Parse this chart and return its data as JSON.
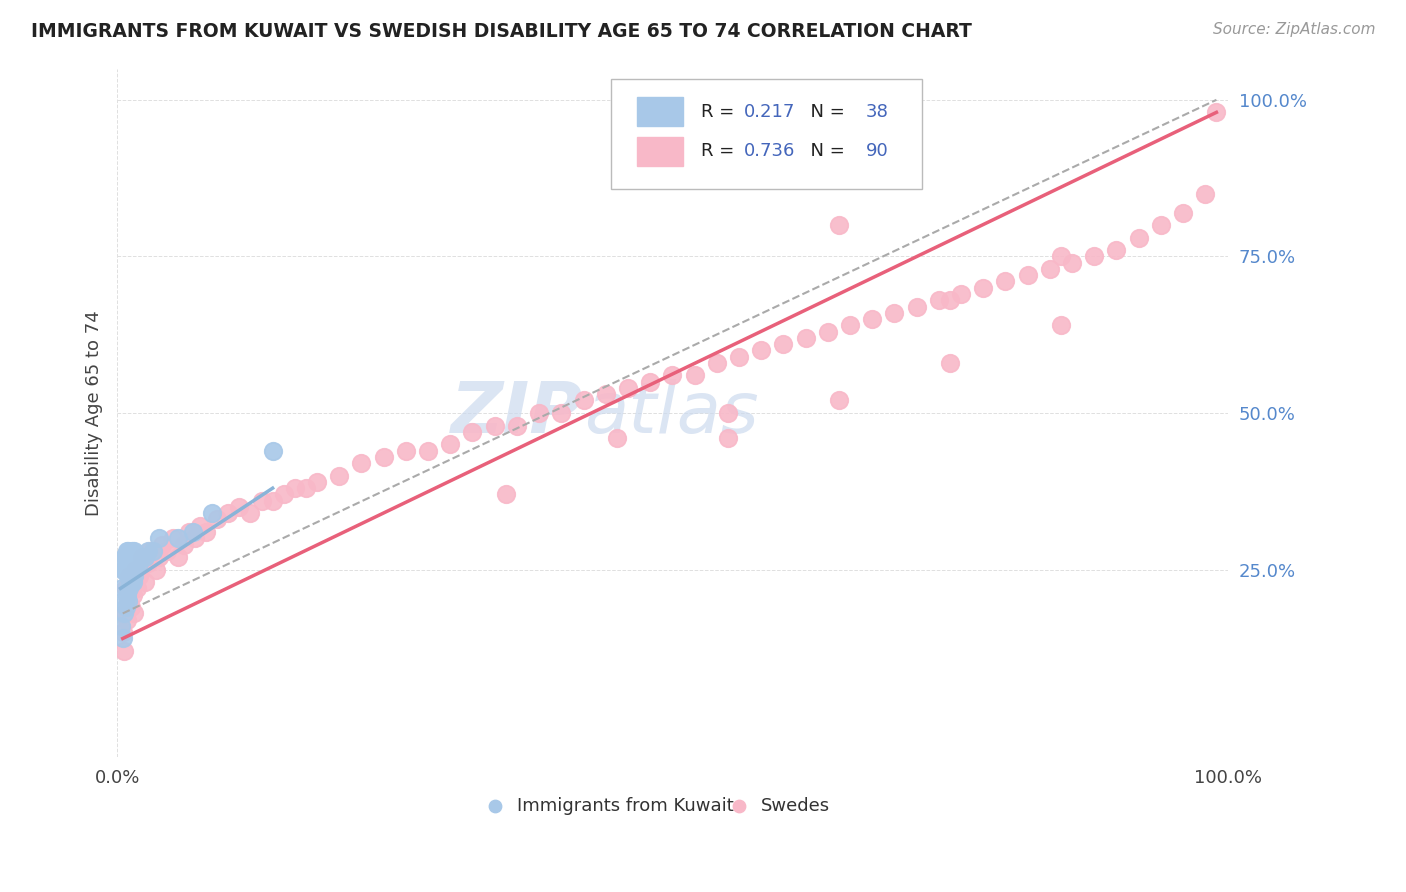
{
  "title": "IMMIGRANTS FROM KUWAIT VS SWEDISH DISABILITY AGE 65 TO 74 CORRELATION CHART",
  "source_text": "Source: ZipAtlas.com",
  "ylabel": "Disability Age 65 to 74",
  "xlim": [
    0.0,
    1.0
  ],
  "ylim": [
    -0.05,
    1.05
  ],
  "legend_label_1": "Immigrants from Kuwait",
  "legend_label_2": "Swedes",
  "r1": "0.217",
  "n1": "38",
  "r2": "0.736",
  "n2": "90",
  "kuwait_color": "#a8c8e8",
  "kuwait_edge_color": "#7aaad0",
  "sweden_color": "#f8b8c8",
  "sweden_edge_color": "#e88898",
  "kuwait_line_color": "#8ab4d8",
  "sweden_line_color": "#e8607a",
  "background_color": "#ffffff",
  "grid_color": "#e0e0e0",
  "watermark_color": "#ccdaee",
  "title_color": "#222222",
  "source_color": "#999999",
  "ytick_color": "#5588cc",
  "xtick_color": "#444444",
  "ylabel_color": "#444444",
  "legend_r_color": "#222222",
  "legend_n_color": "#4466bb",
  "kuwait_x": [
    0.003,
    0.004,
    0.005,
    0.005,
    0.006,
    0.006,
    0.007,
    0.007,
    0.008,
    0.008,
    0.009,
    0.009,
    0.01,
    0.01,
    0.01,
    0.011,
    0.011,
    0.012,
    0.012,
    0.013,
    0.013,
    0.014,
    0.014,
    0.015,
    0.015,
    0.016,
    0.017,
    0.018,
    0.02,
    0.022,
    0.025,
    0.028,
    0.032,
    0.038,
    0.055,
    0.068,
    0.085,
    0.14
  ],
  "kuwait_y": [
    0.16,
    0.22,
    0.14,
    0.25,
    0.18,
    0.27,
    0.2,
    0.25,
    0.19,
    0.27,
    0.21,
    0.28,
    0.2,
    0.24,
    0.28,
    0.22,
    0.26,
    0.23,
    0.27,
    0.24,
    0.28,
    0.23,
    0.27,
    0.24,
    0.28,
    0.25,
    0.26,
    0.27,
    0.26,
    0.27,
    0.27,
    0.28,
    0.28,
    0.3,
    0.3,
    0.31,
    0.34,
    0.44
  ],
  "kuwait_line_x": [
    0.003,
    0.14
  ],
  "kuwait_line_y": [
    0.22,
    0.38
  ],
  "sweden_x": [
    0.005,
    0.006,
    0.007,
    0.008,
    0.009,
    0.01,
    0.011,
    0.012,
    0.013,
    0.014,
    0.015,
    0.016,
    0.018,
    0.02,
    0.022,
    0.025,
    0.028,
    0.03,
    0.035,
    0.038,
    0.04,
    0.045,
    0.05,
    0.055,
    0.06,
    0.065,
    0.07,
    0.075,
    0.08,
    0.09,
    0.1,
    0.11,
    0.12,
    0.13,
    0.14,
    0.15,
    0.16,
    0.17,
    0.18,
    0.2,
    0.22,
    0.24,
    0.26,
    0.28,
    0.3,
    0.32,
    0.34,
    0.36,
    0.38,
    0.4,
    0.42,
    0.44,
    0.46,
    0.48,
    0.5,
    0.52,
    0.54,
    0.56,
    0.58,
    0.6,
    0.62,
    0.64,
    0.66,
    0.68,
    0.7,
    0.72,
    0.74,
    0.76,
    0.78,
    0.8,
    0.82,
    0.84,
    0.86,
    0.88,
    0.9,
    0.92,
    0.94,
    0.96,
    0.98,
    0.99,
    0.35,
    0.45,
    0.55,
    0.65,
    0.75,
    0.85,
    0.55,
    0.65,
    0.75,
    0.85
  ],
  "sweden_y": [
    0.15,
    0.12,
    0.18,
    0.22,
    0.17,
    0.2,
    0.24,
    0.19,
    0.23,
    0.21,
    0.18,
    0.25,
    0.22,
    0.24,
    0.27,
    0.23,
    0.26,
    0.28,
    0.25,
    0.27,
    0.29,
    0.28,
    0.3,
    0.27,
    0.29,
    0.31,
    0.3,
    0.32,
    0.31,
    0.33,
    0.34,
    0.35,
    0.34,
    0.36,
    0.36,
    0.37,
    0.38,
    0.38,
    0.39,
    0.4,
    0.42,
    0.43,
    0.44,
    0.44,
    0.45,
    0.47,
    0.48,
    0.48,
    0.5,
    0.5,
    0.52,
    0.53,
    0.54,
    0.55,
    0.56,
    0.56,
    0.58,
    0.59,
    0.6,
    0.61,
    0.62,
    0.63,
    0.64,
    0.65,
    0.66,
    0.67,
    0.68,
    0.69,
    0.7,
    0.71,
    0.72,
    0.73,
    0.74,
    0.75,
    0.76,
    0.78,
    0.8,
    0.82,
    0.85,
    0.98,
    0.37,
    0.46,
    0.46,
    0.52,
    0.68,
    0.64,
    0.5,
    0.8,
    0.58,
    0.75
  ],
  "sweden_line_x": [
    0.005,
    0.99
  ],
  "sweden_line_y": [
    0.14,
    0.98
  ],
  "dashed_line_x": [
    0.005,
    0.99
  ],
  "dashed_line_y": [
    0.18,
    1.0
  ]
}
